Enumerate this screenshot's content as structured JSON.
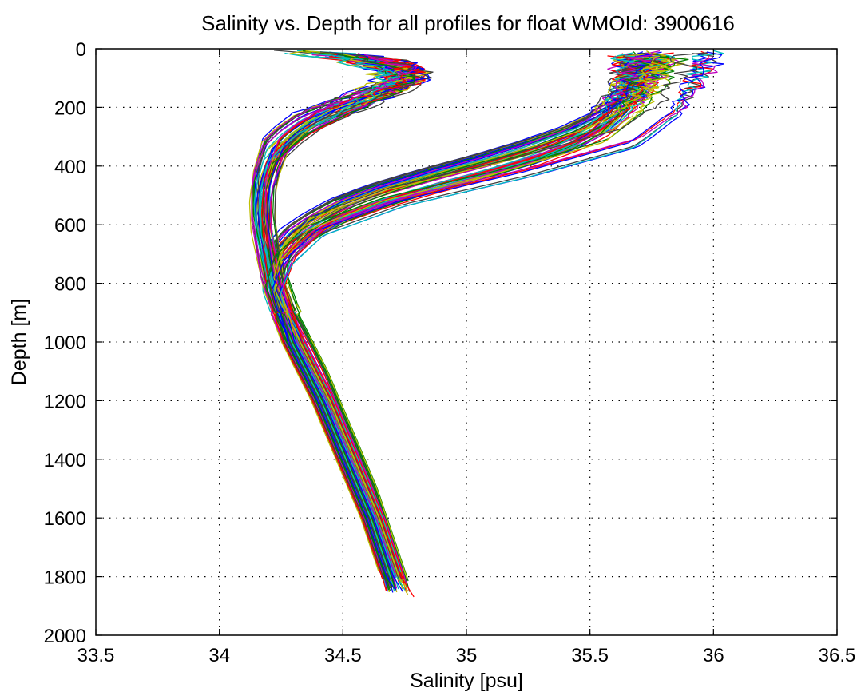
{
  "chart_data": {
    "type": "line",
    "title": "Salinity vs. Depth for all profiles for float WMOId: 3900616",
    "xlabel": "Salinity [psu]",
    "ylabel": "Depth [m]",
    "xlim": [
      33.5,
      36.5
    ],
    "ylim": [
      0,
      2000
    ],
    "y_reversed": true,
    "grid": true,
    "legend": "none",
    "xticks": [
      33.5,
      34,
      34.5,
      35,
      35.5,
      36,
      36.5
    ],
    "yticks": [
      0,
      200,
      400,
      600,
      800,
      1000,
      1200,
      1400,
      1600,
      1800,
      2000
    ],
    "xtick_labels": [
      "33.5",
      "34",
      "34.5",
      "35",
      "35.5",
      "36",
      "36.5"
    ],
    "ytick_labels": [
      "0",
      "200",
      "400",
      "600",
      "800",
      "1000",
      "1200",
      "1400",
      "1600",
      "1800",
      "2000"
    ],
    "series_colors": [
      "#0000ff",
      "#008000",
      "#ff0000",
      "#00bfbf",
      "#bf00bf",
      "#bfbf00",
      "#404040"
    ],
    "series_groups": [
      {
        "group": "warm-saline-upper-profiles",
        "count": 55,
        "depth": [
          0,
          50,
          100,
          150,
          200,
          250,
          300,
          350,
          400,
          450,
          500,
          550,
          600,
          650,
          700,
          750,
          800,
          900,
          1000,
          1100,
          1200,
          1300,
          1400,
          1500,
          1600,
          1700,
          1800,
          1860
        ],
        "salinity": [
          35.72,
          35.72,
          35.7,
          35.67,
          35.62,
          35.55,
          35.44,
          35.28,
          35.08,
          34.86,
          34.66,
          34.5,
          34.39,
          34.3,
          34.25,
          34.23,
          34.23,
          34.27,
          34.33,
          34.39,
          34.44,
          34.49,
          34.54,
          34.59,
          34.63,
          34.67,
          34.71,
          34.73
        ],
        "spread_upper": 0.08,
        "spread_deep": 0.05
      },
      {
        "group": "fresh-upper-profiles",
        "count": 55,
        "depth": [
          0,
          30,
          60,
          100,
          150,
          200,
          250,
          300,
          350,
          400,
          450,
          500,
          550,
          600,
          650,
          700,
          750,
          800,
          900,
          1000,
          1100,
          1200,
          1300,
          1400,
          1500,
          1600,
          1700,
          1800,
          1860
        ],
        "salinity": [
          34.3,
          34.55,
          34.7,
          34.75,
          34.65,
          34.5,
          34.36,
          34.28,
          34.22,
          34.2,
          34.18,
          34.17,
          34.17,
          34.17,
          34.18,
          34.19,
          34.2,
          34.21,
          34.25,
          34.3,
          34.36,
          34.42,
          34.47,
          34.52,
          34.57,
          34.62,
          34.66,
          34.7,
          34.72
        ],
        "spread_upper": 0.08,
        "spread_deep": 0.05
      },
      {
        "group": "outlier-profiles",
        "count": 10,
        "depth": [
          0,
          100,
          200,
          300,
          400,
          500,
          600,
          700,
          800,
          1000,
          1200,
          1400,
          1600,
          1800,
          1880
        ],
        "salinity": [
          35.9,
          35.85,
          35.78,
          35.62,
          35.2,
          34.7,
          34.38,
          34.26,
          34.22,
          34.3,
          34.42,
          34.52,
          34.62,
          34.7,
          34.76
        ],
        "spread_upper": 0.12,
        "spread_deep": 0.04
      }
    ]
  }
}
